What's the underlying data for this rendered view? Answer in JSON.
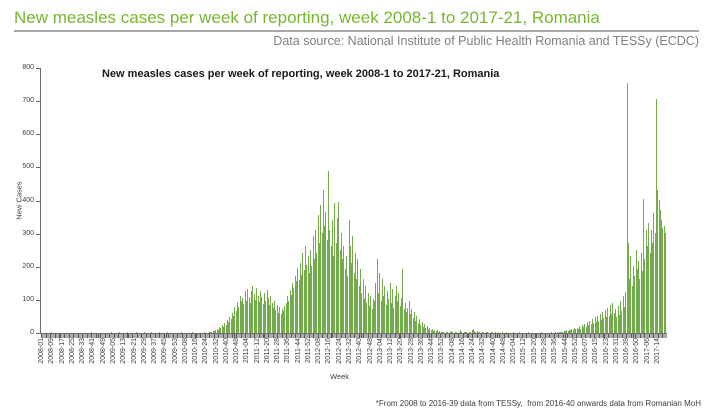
{
  "page": {
    "title": "New measles cases per week of reporting, week 2008-1 to 2017-21, Romania",
    "data_source": "Data source: National Institute of Public Health Romania and TESSy (ECDC)",
    "footnote": "*From 2008 to 2016-39 data from TESSy,  from 2016-40 onwards data from Romanian MoH"
  },
  "colors": {
    "page_title_green": "#76b72e",
    "bar_green": "#73ac4c",
    "axis_gray": "#6b6b6b",
    "subtitle_gray": "#7f7f7f",
    "footnote_dark": "#3c3c3c"
  },
  "chart_data": {
    "type": "bar",
    "title": "New measles cases per week of reporting, week 2008-1 to 2017-21, Romania",
    "xlabel": "Week",
    "ylabel": "New Cases",
    "ylim": [
      0,
      800
    ],
    "yticks": [
      0,
      100,
      200,
      300,
      400,
      500,
      600,
      700,
      800
    ],
    "grid": false,
    "legend": "none",
    "x_start_week": "2008-01",
    "x_end_week": "2017-21",
    "x_tick_every": 8,
    "x_tick_labels": [
      "2008-01",
      "2008-09",
      "2008-17",
      "2008-25",
      "2008-33",
      "2008-41",
      "2008-49",
      "2009-05",
      "2009-13",
      "2009-21",
      "2009-29",
      "2009-37",
      "2009-45",
      "2009-53",
      "2010-08",
      "2010-16",
      "2010-24",
      "2010-32",
      "2010-40",
      "2010-48",
      "2011-04",
      "2011-12",
      "2011-20",
      "2011-28",
      "2011-36",
      "2011-44",
      "2011-52",
      "2012-08",
      "2012-16",
      "2012-24",
      "2012-32",
      "2012-40",
      "2012-48",
      "2013-04",
      "2013-12",
      "2013-20",
      "2013-28",
      "2013-36",
      "2013-44",
      "2013-52",
      "2014-08",
      "2014-16",
      "2014-24",
      "2014-32",
      "2014-40",
      "2014-48",
      "2015-04",
      "2015-12",
      "2015-20",
      "2015-28",
      "2015-36",
      "2015-44",
      "2015-52",
      "2016-07",
      "2016-15",
      "2016-23",
      "2016-31",
      "2016-39",
      "2016-50",
      "2017-06",
      "2017-14"
    ],
    "values": [
      0,
      0,
      1,
      0,
      0,
      1,
      0,
      0,
      2,
      0,
      0,
      1,
      0,
      0,
      0,
      1,
      0,
      0,
      1,
      0,
      0,
      0,
      1,
      0,
      0,
      1,
      0,
      0,
      0,
      1,
      0,
      0,
      1,
      0,
      0,
      0,
      1,
      0,
      0,
      2,
      0,
      0,
      1,
      0,
      0,
      0,
      1,
      0,
      0,
      1,
      0,
      0,
      1,
      0,
      0,
      2,
      0,
      0,
      1,
      0,
      0,
      3,
      0,
      0,
      1,
      0,
      0,
      2,
      0,
      0,
      1,
      0,
      0,
      0,
      2,
      0,
      0,
      1,
      0,
      0,
      4,
      0,
      0,
      1,
      0,
      0,
      2,
      0,
      0,
      1,
      0,
      0,
      3,
      0,
      0,
      1,
      0,
      0,
      2,
      0,
      0,
      1,
      0,
      0,
      1,
      0,
      1,
      0,
      0,
      2,
      0,
      0,
      1,
      0,
      0,
      1,
      0,
      0,
      2,
      0,
      0,
      1,
      0,
      0,
      1,
      0,
      0,
      2,
      0,
      1,
      0,
      3,
      2,
      4,
      6,
      5,
      9,
      13,
      10,
      17,
      14,
      23,
      19,
      30,
      25,
      38,
      32,
      48,
      41,
      60,
      52,
      78,
      66,
      95,
      80,
      112,
      98,
      105,
      88,
      126,
      96,
      133,
      110,
      90,
      128,
      143,
      118,
      100,
      136,
      112,
      95,
      127,
      108,
      88,
      121,
      98,
      131,
      105,
      85,
      111,
      92,
      76,
      96,
      70,
      86,
      61,
      79,
      56,
      73,
      66,
      81,
      92,
      111,
      96,
      131,
      116,
      152,
      136,
      171,
      156,
      196,
      161,
      212,
      176,
      241,
      191,
      262,
      206,
      231,
      182,
      252,
      202,
      292,
      222,
      312,
      242,
      356,
      272,
      386,
      302,
      432,
      322,
      366,
      282,
      489,
      312,
      262,
      342,
      232,
      392,
      272,
      346,
      396,
      252,
      302,
      222,
      262,
      192,
      232,
      172,
      341,
      262,
      212,
      292,
      182,
      242,
      162,
      222,
      142,
      192,
      122,
      162,
      102,
      142,
      92,
      122,
      82,
      112,
      72,
      102,
      96,
      152,
      222,
      122,
      182,
      96,
      162,
      112,
      142,
      86,
      126,
      102,
      152,
      92,
      132,
      76,
      112,
      142,
      96,
      122,
      82,
      106,
      192,
      72,
      92,
      62,
      76,
      96,
      56,
      72,
      46,
      62,
      36,
      52,
      29,
      42,
      23,
      33,
      19,
      26,
      15,
      21,
      11,
      16,
      9,
      13,
      7,
      10,
      5,
      8,
      4,
      6,
      3,
      2,
      4,
      1,
      2,
      2,
      1,
      3,
      6,
      2,
      1,
      3,
      3,
      1,
      2,
      8,
      2,
      1,
      4,
      2,
      4,
      1,
      3,
      2,
      10,
      12,
      7,
      3,
      5,
      2,
      3,
      1,
      3,
      2,
      1,
      2,
      2,
      1,
      1,
      4,
      2,
      1,
      2,
      1,
      1,
      2,
      1,
      1,
      2,
      1,
      1,
      2,
      1,
      1,
      0,
      1,
      2,
      0,
      1,
      1,
      0,
      2,
      1,
      0,
      1,
      1,
      0,
      1,
      2,
      0,
      1,
      1,
      0,
      1,
      0,
      1,
      1,
      0,
      2,
      1,
      0,
      1,
      1,
      0,
      1,
      1,
      2,
      1,
      1,
      2,
      1,
      2,
      2,
      3,
      4,
      3,
      6,
      5,
      8,
      6,
      10,
      8,
      12,
      10,
      15,
      12,
      16,
      11,
      20,
      13,
      24,
      17,
      27,
      19,
      32,
      23,
      37,
      26,
      42,
      29,
      47,
      33,
      52,
      36,
      58,
      40,
      63,
      44,
      70,
      47,
      77,
      51,
      84,
      56,
      91,
      61,
      72,
      48,
      82,
      54,
      96,
      66,
      112,
      78,
      124,
      755,
      272,
      162,
      232,
      142,
      202,
      172,
      252,
      192,
      216,
      162,
      242,
      186,
      406,
      222,
      312,
      262,
      332,
      242,
      312,
      272,
      362,
      302,
      705,
      432,
      402,
      372,
      342,
      316,
      322,
      302
    ]
  }
}
